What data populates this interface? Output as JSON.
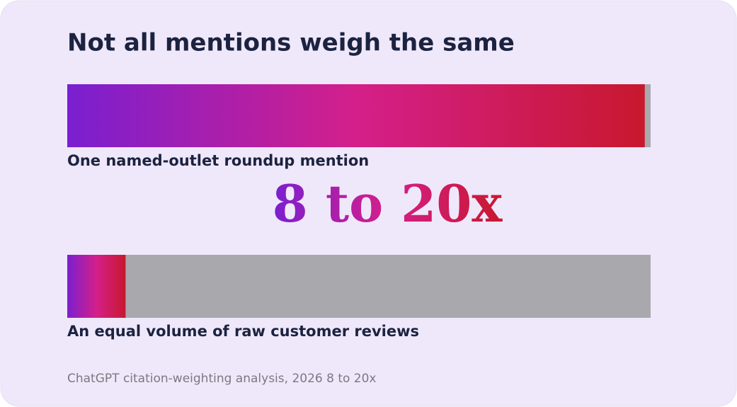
{
  "chart_data": {
    "type": "bar",
    "orientation": "horizontal",
    "title": "Not all mentions weigh the same",
    "categories": [
      "One named-outlet roundup mention",
      "An equal volume of raw customer reviews"
    ],
    "values": [
      99,
      10
    ],
    "xlim": [
      0,
      100
    ],
    "gradient_colors": [
      "#7a1fd0",
      "#d41f8a",
      "#c8182e"
    ],
    "track_color": "#a9a9ad",
    "headline": "8 to 20x",
    "source": "ChatGPT citation-weighting analysis, 2026 8 to 20x"
  }
}
